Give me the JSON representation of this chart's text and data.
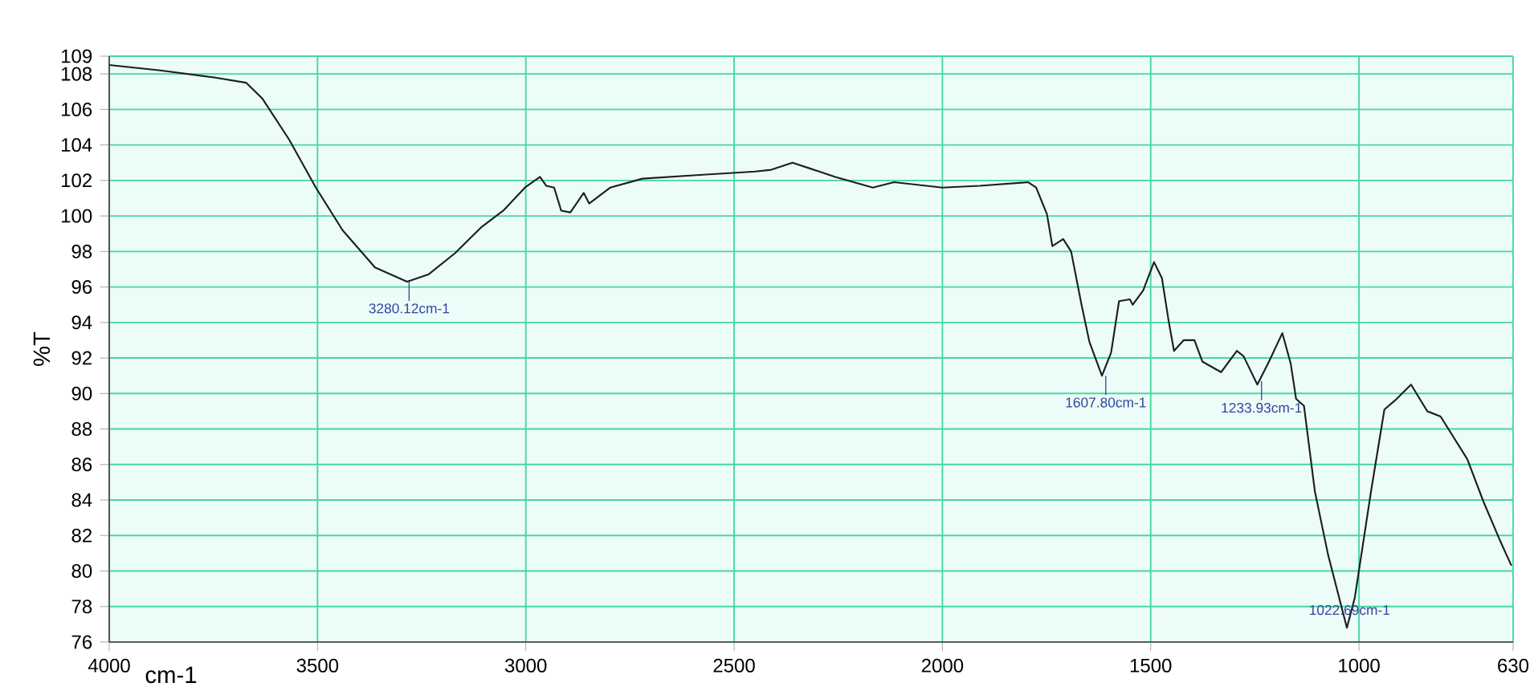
{
  "chart_data": {
    "type": "line",
    "xlabel": "cm-1",
    "ylabel": "%T",
    "x": [
      4000,
      3877,
      3748,
      3671,
      3632,
      3568,
      3504,
      3440,
      3362,
      3285,
      3234,
      3170,
      3105,
      3054,
      3002,
      2966,
      2951,
      2932,
      2915,
      2893,
      2861,
      2848,
      2797,
      2720,
      2591,
      2450,
      2411,
      2360,
      2321,
      2257,
      2167,
      2116,
      2000,
      1910,
      1794,
      1775,
      1749,
      1736,
      1710,
      1691,
      1666,
      1647,
      1617,
      1595,
      1576,
      1550,
      1543,
      1518,
      1492,
      1473,
      1457,
      1444,
      1421,
      1395,
      1376,
      1331,
      1293,
      1277,
      1244,
      1216,
      1184,
      1164,
      1151,
      1132,
      1106,
      1074,
      1029,
      1010,
      971,
      939,
      914,
      875,
      836,
      804,
      740,
      701,
      663,
      634
    ],
    "series": [
      {
        "color": "#1e1e1e",
        "values": [
          108.5,
          108.2,
          107.8,
          107.5,
          106.6,
          104.3,
          101.6,
          99.2,
          97.1,
          96.3,
          96.7,
          97.9,
          99.4,
          100.3,
          101.6,
          102.2,
          101.7,
          101.6,
          100.3,
          100.2,
          101.3,
          100.7,
          101.6,
          102.1,
          102.3,
          102.5,
          102.6,
          103.0,
          102.7,
          102.2,
          101.6,
          101.9,
          101.6,
          101.7,
          101.9,
          101.6,
          100.1,
          98.3,
          98.7,
          98.0,
          95.0,
          92.9,
          91.0,
          92.3,
          95.2,
          95.3,
          95.0,
          95.8,
          97.4,
          96.5,
          94.1,
          92.4,
          93.0,
          93.0,
          91.8,
          91.2,
          92.4,
          92.1,
          90.5,
          91.8,
          93.4,
          91.7,
          89.7,
          89.3,
          84.5,
          80.9,
          76.8,
          78.5,
          84.5,
          89.1,
          89.6,
          90.5,
          89.0,
          88.7,
          86.3,
          83.9,
          81.8,
          80.3
        ]
      }
    ],
    "xlim": [
      4000,
      630
    ],
    "ylim": [
      76,
      109
    ],
    "xticks": [
      4000,
      3500,
      3000,
      2500,
      2000,
      1500,
      1000,
      630
    ],
    "yticks": [
      76,
      78,
      80,
      82,
      84,
      86,
      88,
      90,
      92,
      94,
      96,
      98,
      100,
      102,
      104,
      106,
      108,
      109
    ],
    "grid": true,
    "marker": "none",
    "line_style": "solid",
    "annotations": [
      {
        "text": "3280.12cm-1",
        "x": 3280.12,
        "y": 96.3
      },
      {
        "text": "1607.80cm-1",
        "x": 1607.8,
        "y": 91.0
      },
      {
        "text": "1233.93cm-1",
        "x": 1233.93,
        "y": 90.7
      },
      {
        "text": "1022.69cm-1",
        "x": 1022.69,
        "y": 76.9
      }
    ]
  }
}
